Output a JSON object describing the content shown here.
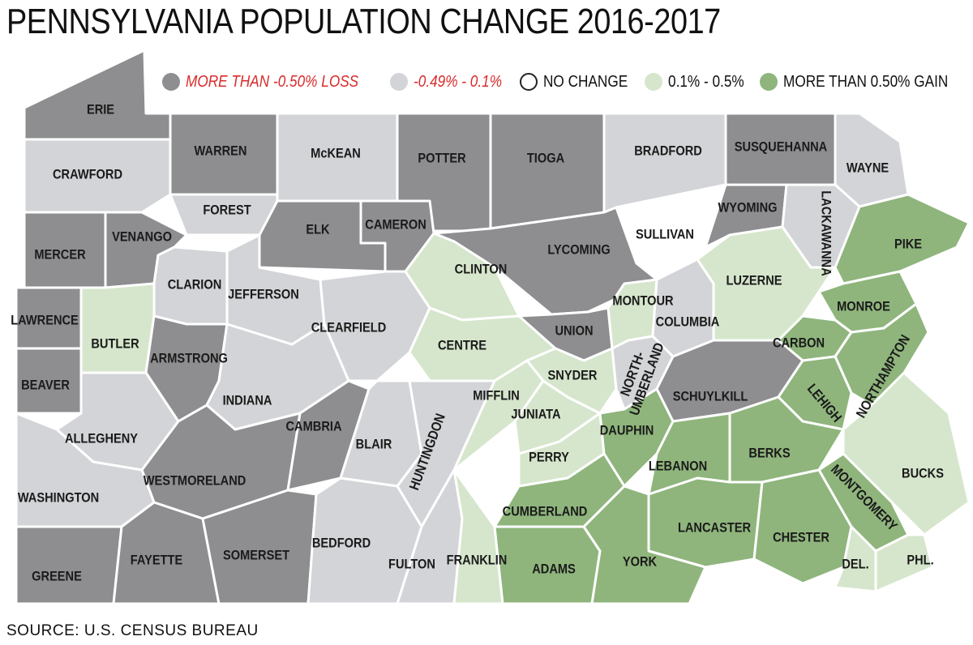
{
  "title": "PENNSYLVANIA POPULATION CHANGE 2016-2017",
  "source": "SOURCE: U.S. CENSUS BUREAU",
  "legend": [
    {
      "label": "MORE THAN -0.50% LOSS",
      "color": "#8e8e91",
      "text_color": "#d92b2b"
    },
    {
      "label": "-0.49% - 0.1%",
      "color": "#d3d4d7",
      "text_color": "#d92b2b"
    },
    {
      "label": "NO CHANGE",
      "color": "#ffffff",
      "text_color": "#111111"
    },
    {
      "label": "0.1% - 0.5%",
      "color": "#d6e6cc",
      "text_color": "#111111"
    },
    {
      "label": "MORE THAN 0.50% GAIN",
      "color": "#8fb57c",
      "text_color": "#111111"
    }
  ],
  "colors": {
    "big_loss": "#8e8e91",
    "loss": "#d3d4d7",
    "no_change": "#ffffff",
    "gain": "#d6e6cc",
    "big_gain": "#8fb57c",
    "border": "#ffffff"
  },
  "counties": [
    {
      "name": "ERIE",
      "category": "big_loss"
    },
    {
      "name": "CRAWFORD",
      "category": "loss"
    },
    {
      "name": "WARREN",
      "category": "big_loss"
    },
    {
      "name": "McKEAN",
      "category": "loss"
    },
    {
      "name": "POTTER",
      "category": "big_loss"
    },
    {
      "name": "TIOGA",
      "category": "big_loss"
    },
    {
      "name": "BRADFORD",
      "category": "loss"
    },
    {
      "name": "SUSQUEHANNA",
      "category": "big_loss"
    },
    {
      "name": "WAYNE",
      "category": "loss"
    },
    {
      "name": "FOREST",
      "category": "loss"
    },
    {
      "name": "ELK",
      "category": "big_loss"
    },
    {
      "name": "CAMERON",
      "category": "big_loss"
    },
    {
      "name": "LYCOMING",
      "category": "big_loss"
    },
    {
      "name": "SULLIVAN",
      "category": "no_change"
    },
    {
      "name": "WYOMING",
      "category": "big_loss"
    },
    {
      "name": "LACKAWANNA",
      "category": "loss"
    },
    {
      "name": "PIKE",
      "category": "big_gain"
    },
    {
      "name": "MERCER",
      "category": "big_loss"
    },
    {
      "name": "VENANGO",
      "category": "big_loss"
    },
    {
      "name": "CLARION",
      "category": "loss"
    },
    {
      "name": "JEFFERSON",
      "category": "loss"
    },
    {
      "name": "CLEARFIELD",
      "category": "loss"
    },
    {
      "name": "CLINTON",
      "category": "gain"
    },
    {
      "name": "CENTRE",
      "category": "gain"
    },
    {
      "name": "UNION",
      "category": "big_loss"
    },
    {
      "name": "MONTOUR",
      "category": "gain"
    },
    {
      "name": "COLUMBIA",
      "category": "loss"
    },
    {
      "name": "LUZERNE",
      "category": "gain"
    },
    {
      "name": "MONROE",
      "category": "big_gain"
    },
    {
      "name": "CARBON",
      "category": "big_gain"
    },
    {
      "name": "NORTHAMPTON",
      "category": "big_gain"
    },
    {
      "name": "LAWRENCE",
      "category": "big_loss"
    },
    {
      "name": "BUTLER",
      "category": "gain"
    },
    {
      "name": "ARMSTRONG",
      "category": "big_loss"
    },
    {
      "name": "INDIANA",
      "category": "loss"
    },
    {
      "name": "BEAVER",
      "category": "big_loss"
    },
    {
      "name": "ALLEGHENY",
      "category": "loss"
    },
    {
      "name": "WESTMORELAND",
      "category": "big_loss"
    },
    {
      "name": "WASHINGTON",
      "category": "loss"
    },
    {
      "name": "CAMBRIA",
      "category": "big_loss"
    },
    {
      "name": "BLAIR",
      "category": "loss"
    },
    {
      "name": "HUNTINGDON",
      "category": "loss"
    },
    {
      "name": "MIFFLIN",
      "category": "gain"
    },
    {
      "name": "JUNIATA",
      "category": "gain"
    },
    {
      "name": "SNYDER",
      "category": "gain"
    },
    {
      "name": "NORTH-\nUMBERLAND",
      "category": "loss"
    },
    {
      "name": "SCHUYLKILL",
      "category": "big_loss"
    },
    {
      "name": "LEHIGH",
      "category": "big_gain"
    },
    {
      "name": "PERRY",
      "category": "gain"
    },
    {
      "name": "DAUPHIN",
      "category": "big_gain"
    },
    {
      "name": "LEBANON",
      "category": "big_gain"
    },
    {
      "name": "BERKS",
      "category": "big_gain"
    },
    {
      "name": "BUCKS",
      "category": "gain"
    },
    {
      "name": "MONTGOMERY",
      "category": "big_gain"
    },
    {
      "name": "CUMBERLAND",
      "category": "big_gain"
    },
    {
      "name": "LANCASTER",
      "category": "big_gain"
    },
    {
      "name": "CHESTER",
      "category": "big_gain"
    },
    {
      "name": "GREENE",
      "category": "big_loss"
    },
    {
      "name": "FAYETTE",
      "category": "big_loss"
    },
    {
      "name": "SOMERSET",
      "category": "big_loss"
    },
    {
      "name": "BEDFORD",
      "category": "loss"
    },
    {
      "name": "FULTON",
      "category": "loss"
    },
    {
      "name": "FRANKLIN",
      "category": "gain"
    },
    {
      "name": "ADAMS",
      "category": "big_gain"
    },
    {
      "name": "YORK",
      "category": "big_gain"
    },
    {
      "name": "DEL.",
      "category": "gain"
    },
    {
      "name": "PHL.",
      "category": "gain"
    }
  ]
}
